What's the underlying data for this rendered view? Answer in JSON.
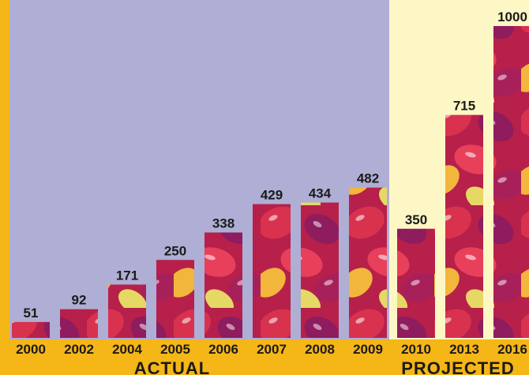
{
  "chart_data": {
    "type": "bar",
    "categories": [
      "2000",
      "2002",
      "2004",
      "2005",
      "2006",
      "2007",
      "2008",
      "2009",
      "2010",
      "2013",
      "2016"
    ],
    "values": [
      51,
      92,
      171,
      250,
      338,
      429,
      434,
      482,
      350,
      715,
      1000
    ],
    "data_labels": [
      "51",
      "92",
      "171",
      "250",
      "338",
      "429",
      "434",
      "482",
      "350",
      "715",
      "1000"
    ],
    "groups": [
      {
        "label": "ACTUAL",
        "categories": [
          "2000",
          "2002",
          "2004",
          "2005",
          "2006",
          "2007",
          "2008",
          "2009"
        ]
      },
      {
        "label": "PROJECTED",
        "categories": [
          "2010",
          "2013",
          "2016"
        ]
      }
    ],
    "ylim": [
      0,
      1000
    ],
    "grid": false,
    "title": "",
    "xlabel": "",
    "ylabel": ""
  },
  "colors": {
    "frame": "#F5B617",
    "actual_panel": "#AFAED4",
    "projected_panel": "#FCF7C5",
    "bar_base": "#B6204A"
  }
}
